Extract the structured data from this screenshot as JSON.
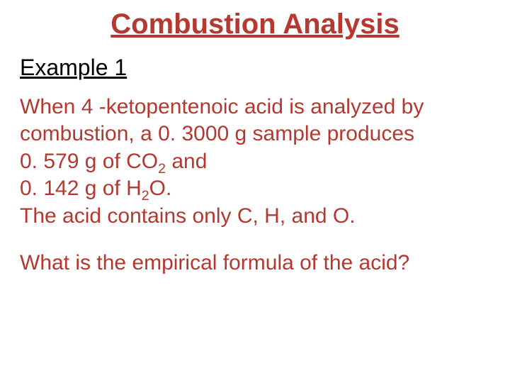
{
  "colors": {
    "title": "#b63830",
    "subtitle": "#000000",
    "body": "#b43830",
    "question": "#b43830",
    "background": "#ffffff"
  },
  "fontsizes": {
    "title": 40,
    "subtitle": 32,
    "body": 30,
    "question": 30
  },
  "title": "Combustion Analysis",
  "subtitle": "Example 1",
  "body": {
    "line1_a": "When 4 -ketopentenoic acid is analyzed by",
    "line2_a": "combustion, a 0. 3000 g sample produces",
    "line3_a": "0. 579 g of CO",
    "line3_sub": "2",
    "line3_b": " and",
    "line4_a": "0. 142 g of H",
    "line4_sub": "2",
    "line4_b": "O.",
    "line5_a": "The acid contains only C, H, and O."
  },
  "question": "What is the empirical formula of the acid?"
}
